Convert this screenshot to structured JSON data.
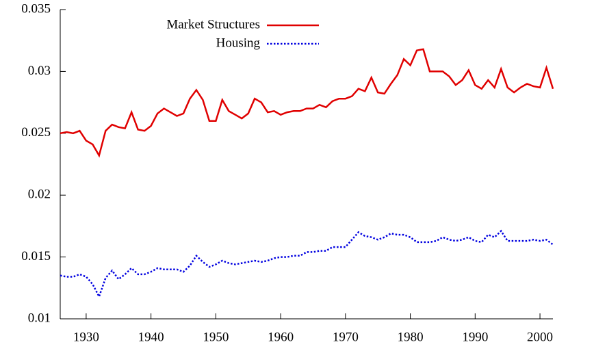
{
  "chart_data": {
    "type": "line",
    "x": [
      1926,
      1927,
      1928,
      1929,
      1930,
      1931,
      1932,
      1933,
      1934,
      1935,
      1936,
      1937,
      1938,
      1939,
      1940,
      1941,
      1942,
      1943,
      1944,
      1945,
      1946,
      1947,
      1948,
      1949,
      1950,
      1951,
      1952,
      1953,
      1954,
      1955,
      1956,
      1957,
      1958,
      1959,
      1960,
      1961,
      1962,
      1963,
      1964,
      1965,
      1966,
      1967,
      1968,
      1969,
      1970,
      1971,
      1972,
      1973,
      1974,
      1975,
      1976,
      1977,
      1978,
      1979,
      1980,
      1981,
      1982,
      1983,
      1984,
      1985,
      1986,
      1987,
      1988,
      1989,
      1990,
      1991,
      1992,
      1993,
      1994,
      1995,
      1996,
      1997,
      1998,
      1999,
      2000,
      2001,
      2002
    ],
    "series": [
      {
        "name": "Market Structures",
        "color": "#e00000",
        "dash": "solid",
        "values": [
          0.025,
          0.0251,
          0.025,
          0.0252,
          0.0244,
          0.0241,
          0.0232,
          0.0252,
          0.0257,
          0.0255,
          0.0254,
          0.0267,
          0.0253,
          0.0252,
          0.0256,
          0.0266,
          0.027,
          0.0267,
          0.0264,
          0.0266,
          0.0278,
          0.0285,
          0.0277,
          0.026,
          0.026,
          0.0277,
          0.0268,
          0.0265,
          0.0262,
          0.0266,
          0.0278,
          0.0275,
          0.0267,
          0.0268,
          0.0265,
          0.0267,
          0.0268,
          0.0268,
          0.027,
          0.027,
          0.0273,
          0.0271,
          0.0276,
          0.0278,
          0.0278,
          0.028,
          0.0286,
          0.0284,
          0.0295,
          0.0283,
          0.0282,
          0.029,
          0.0297,
          0.031,
          0.0305,
          0.0317,
          0.0318,
          0.03,
          0.03,
          0.03,
          0.0296,
          0.0289,
          0.0293,
          0.0301,
          0.0289,
          0.0286,
          0.0293,
          0.0287,
          0.0302,
          0.0287,
          0.0283,
          0.0287,
          0.029,
          0.0288,
          0.0287,
          0.0303,
          0.0286
        ]
      },
      {
        "name": "Housing",
        "color": "#0000e0",
        "dash": "dotted",
        "values": [
          0.0135,
          0.0134,
          0.0134,
          0.0136,
          0.0134,
          0.0128,
          0.0118,
          0.0133,
          0.0139,
          0.0132,
          0.0136,
          0.0141,
          0.0136,
          0.0136,
          0.0138,
          0.0141,
          0.014,
          0.014,
          0.014,
          0.0138,
          0.0143,
          0.0151,
          0.0146,
          0.0142,
          0.0144,
          0.0147,
          0.0145,
          0.0144,
          0.0145,
          0.0146,
          0.0147,
          0.0146,
          0.0147,
          0.0149,
          0.015,
          0.015,
          0.0151,
          0.0151,
          0.0154,
          0.0154,
          0.0155,
          0.0155,
          0.0158,
          0.0158,
          0.0158,
          0.0164,
          0.017,
          0.0167,
          0.0166,
          0.0164,
          0.0166,
          0.0169,
          0.0168,
          0.0168,
          0.0166,
          0.0162,
          0.0162,
          0.0162,
          0.0163,
          0.0166,
          0.0164,
          0.0163,
          0.0164,
          0.0166,
          0.0163,
          0.0162,
          0.0168,
          0.0166,
          0.0171,
          0.0163,
          0.0163,
          0.0163,
          0.0163,
          0.0164,
          0.0163,
          0.0164,
          0.016
        ]
      }
    ],
    "xlim": [
      1926,
      2002
    ],
    "xticks": [
      1930,
      1940,
      1950,
      1960,
      1970,
      1980,
      1990,
      2000
    ],
    "ylim": [
      0.01,
      0.035
    ],
    "yticks": [
      0.01,
      0.015,
      0.02,
      0.025,
      0.03,
      0.035
    ],
    "legend": "top"
  }
}
